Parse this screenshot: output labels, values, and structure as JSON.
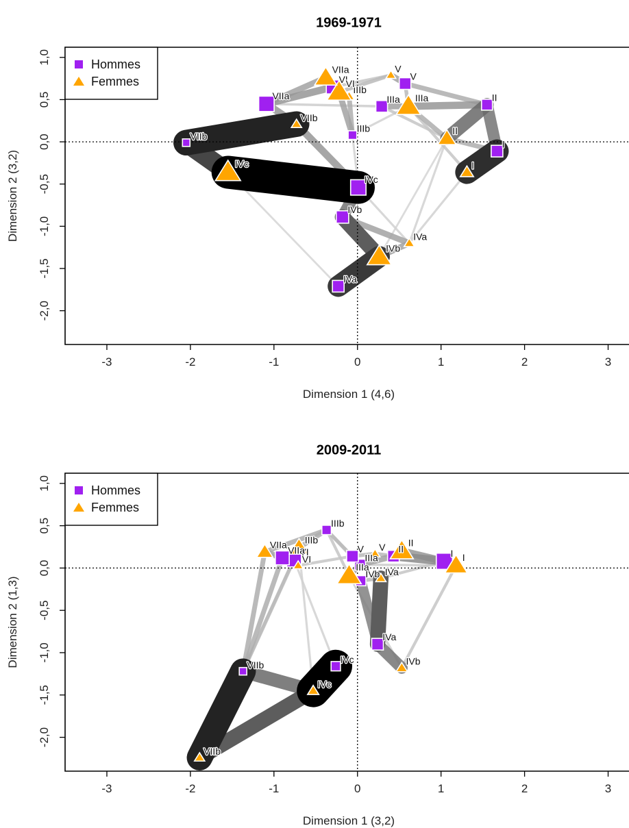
{
  "legend": {
    "entries": [
      {
        "label": "Hommes",
        "symbol": "square",
        "color": "#A020F0"
      },
      {
        "label": "Femmes",
        "symbol": "triangle",
        "color": "#FFA500"
      }
    ]
  },
  "colors": {
    "hommes": "#A020F0",
    "femmes": "#FFA500",
    "reference_line": "#000000"
  },
  "chart_data": [
    {
      "type": "scatter",
      "title": "1969-1971",
      "xlabel": "Dimension 1 (4,6)",
      "ylabel": "Dimension 2 (3,2)",
      "xlim": [
        -3.5,
        3.25
      ],
      "ylim": [
        -2.4,
        1.12
      ],
      "xticks": [
        -3,
        -2,
        -1,
        0,
        1,
        2,
        3
      ],
      "xtick_labels": [
        "-3",
        "-2",
        "-1",
        "0",
        "1",
        "2",
        "3"
      ],
      "yticks": [
        -2.0,
        -1.5,
        -1.0,
        -0.5,
        0.0,
        0.5,
        1.0
      ],
      "ytick_labels": [
        "-2,0",
        "-1,5",
        "-1,0",
        "-0,5",
        "0,0",
        "0,5",
        "1,0"
      ],
      "reference_lines": {
        "x": 0,
        "y": 0,
        "style": "dotted"
      },
      "legend_position": "top-left",
      "series": [
        {
          "name": "Hommes",
          "marker": "square",
          "color": "#A020F0",
          "points": [
            {
              "label": "I",
              "x": 1.67,
              "y": -0.11,
              "size": 1.0
            },
            {
              "label": "II",
              "x": 1.55,
              "y": 0.44,
              "size": 0.9
            },
            {
              "label": "IIIa",
              "x": 0.29,
              "y": 0.42,
              "size": 1.0
            },
            {
              "label": "IIIb",
              "x": -0.06,
              "y": 0.08,
              "size": 0.6
            },
            {
              "label": "IVa",
              "x": -0.23,
              "y": -1.71,
              "size": 1.0
            },
            {
              "label": "IVb",
              "x": -0.18,
              "y": -0.89,
              "size": 1.1
            },
            {
              "label": "IVc",
              "x": 0.01,
              "y": -0.54,
              "size": 1.5
            },
            {
              "label": "V",
              "x": 0.57,
              "y": 0.69,
              "size": 1.0
            },
            {
              "label": "VI",
              "x": -0.29,
              "y": 0.65,
              "size": 1.3
            },
            {
              "label": "VIIa",
              "x": -1.09,
              "y": 0.45,
              "size": 1.5
            },
            {
              "label": "VIIb",
              "x": -2.05,
              "y": -0.01,
              "size": 0.45
            }
          ]
        },
        {
          "name": "Femmes",
          "marker": "triangle",
          "color": "#FFA500",
          "points": [
            {
              "label": "I",
              "x": 1.31,
              "y": -0.36,
              "size": 0.8
            },
            {
              "label": "II",
              "x": 1.07,
              "y": 0.04,
              "size": 1.3
            },
            {
              "label": "IIIa",
              "x": 0.61,
              "y": 0.42,
              "size": 1.9
            },
            {
              "label": "IIIb",
              "x": -0.1,
              "y": 0.54,
              "size": 0.5
            },
            {
              "label": "IVa",
              "x": 0.62,
              "y": -1.2,
              "size": 0.5
            },
            {
              "label": "IVb",
              "x": 0.26,
              "y": -1.36,
              "size": 1.9
            },
            {
              "label": "IVc",
              "x": -1.55,
              "y": -0.36,
              "size": 2.0
            },
            {
              "label": "V",
              "x": 0.4,
              "y": 0.79,
              "size": 0.45
            },
            {
              "label": "VI",
              "x": -0.22,
              "y": 0.59,
              "size": 1.9
            },
            {
              "label": "VIIa",
              "x": -0.38,
              "y": 0.76,
              "size": 1.7
            },
            {
              "label": "VIIb",
              "x": -0.73,
              "y": 0.21,
              "size": 0.5
            }
          ]
        }
      ],
      "segments": [
        {
          "from": "F:IVc",
          "to": "H:IVc",
          "weight": 1.0
        },
        {
          "from": "H:VIIb",
          "to": "F:VIIb",
          "weight": 0.85
        },
        {
          "from": "H:I",
          "to": "F:I",
          "weight": 0.8
        },
        {
          "from": "H:IVa",
          "to": "F:IVb",
          "weight": 0.75
        },
        {
          "from": "H:VIIb",
          "to": "F:IVc",
          "weight": 0.7
        },
        {
          "from": "H:IVb",
          "to": "F:IVb",
          "weight": 0.6
        },
        {
          "from": "H:IVb",
          "to": "H:IVc",
          "weight": 0.5
        },
        {
          "from": "H:II",
          "to": "F:II",
          "weight": 0.55
        },
        {
          "from": "H:II",
          "to": "H:I",
          "weight": 0.5
        },
        {
          "from": "F:VIIb",
          "to": "H:IVc",
          "weight": 0.35
        },
        {
          "from": "H:IVb",
          "to": "F:IVa",
          "weight": 0.3
        },
        {
          "from": "F:IVb",
          "to": "F:IVa",
          "weight": 0.3
        },
        {
          "from": "H:VIIa",
          "to": "F:VIIb",
          "weight": 0.35
        },
        {
          "from": "H:VIIa",
          "to": "H:VI",
          "weight": 0.35
        },
        {
          "from": "H:VIIa",
          "to": "F:VIIa",
          "weight": 0.3
        },
        {
          "from": "F:VIIa",
          "to": "F:VI",
          "weight": 0.3
        },
        {
          "from": "F:VI",
          "to": "H:IIIb",
          "weight": 0.3
        },
        {
          "from": "F:IIIb",
          "to": "H:IIIb",
          "weight": 0.25
        },
        {
          "from": "H:IIIa",
          "to": "F:IIIa",
          "weight": 0.3
        },
        {
          "from": "F:IIIa",
          "to": "H:II",
          "weight": 0.35
        },
        {
          "from": "H:V",
          "to": "F:V",
          "weight": 0.3
        },
        {
          "from": "H:V",
          "to": "H:II",
          "weight": 0.25
        },
        {
          "from": "F:V",
          "to": "F:VI",
          "weight": 0.2
        },
        {
          "from": "F:IIIa",
          "to": "F:II",
          "weight": 0.25
        },
        {
          "from": "F:II",
          "to": "H:I",
          "weight": 0.25
        },
        {
          "from": "H:IIIa",
          "to": "F:II",
          "weight": 0.15
        },
        {
          "from": "H:V",
          "to": "F:IIIa",
          "weight": 0.2
        },
        {
          "from": "F:IIIa",
          "to": "F:I",
          "weight": 0.15
        },
        {
          "from": "H:VI",
          "to": "F:V",
          "weight": 0.15
        },
        {
          "from": "H:IVc",
          "to": "F:IVa",
          "weight": 0.1
        },
        {
          "from": "H:IIIb",
          "to": "F:IIIa",
          "weight": 0.1
        },
        {
          "from": "F:IVa",
          "to": "F:I",
          "weight": 0.1
        },
        {
          "from": "F:IVa",
          "to": "F:II",
          "weight": 0.1
        },
        {
          "from": "F:IVb",
          "to": "F:II",
          "weight": 0.08
        },
        {
          "from": "H:IVc",
          "to": "H:IIIb",
          "weight": 0.1
        },
        {
          "from": "H:IVa",
          "to": "F:IVc",
          "weight": 0.08
        },
        {
          "from": "H:VI",
          "to": "F:IIIb",
          "weight": 0.2
        },
        {
          "from": "H:VIIa",
          "to": "H:IIIa",
          "weight": 0.12
        }
      ]
    },
    {
      "type": "scatter",
      "title": "2009-2011",
      "xlabel": "Dimension 1 (3,2)",
      "ylabel": "Dimension 2 (1,3)",
      "xlim": [
        -3.5,
        3.25
      ],
      "ylim": [
        -2.4,
        1.12
      ],
      "xticks": [
        -3,
        -2,
        -1,
        0,
        1,
        2,
        3
      ],
      "xtick_labels": [
        "-3",
        "-2",
        "-1",
        "0",
        "1",
        "2",
        "3"
      ],
      "yticks": [
        -2.0,
        -1.5,
        -1.0,
        -0.5,
        0.0,
        0.5,
        1.0
      ],
      "ytick_labels": [
        "-2,0",
        "-1,5",
        "-1,0",
        "-0,5",
        "0,0",
        "0,5",
        "1,0"
      ],
      "reference_lines": {
        "x": 0,
        "y": 0,
        "style": "dotted"
      },
      "legend_position": "top-left",
      "series": [
        {
          "name": "Hommes",
          "marker": "square",
          "color": "#A020F0",
          "points": [
            {
              "label": "I",
              "x": 1.04,
              "y": 0.08,
              "size": 1.6
            },
            {
              "label": "II",
              "x": 0.43,
              "y": 0.14,
              "size": 1.0
            },
            {
              "label": "IIIa",
              "x": 0.03,
              "y": 0.04,
              "size": 0.9
            },
            {
              "label": "IIIb",
              "x": -0.37,
              "y": 0.45,
              "size": 0.7
            },
            {
              "label": "IVa",
              "x": 0.24,
              "y": -0.9,
              "size": 1.0
            },
            {
              "label": "IVb",
              "x": 0.04,
              "y": -0.15,
              "size": 0.8
            },
            {
              "label": "IVc",
              "x": -0.26,
              "y": -1.16,
              "size": 0.7
            },
            {
              "label": "V",
              "x": -0.06,
              "y": 0.14,
              "size": 1.0
            },
            {
              "label": "VI",
              "x": -0.76,
              "y": 0.1,
              "size": 1.4
            },
            {
              "label": "VIIa",
              "x": -0.9,
              "y": 0.12,
              "size": 1.3
            },
            {
              "label": "VIIb",
              "x": -1.37,
              "y": -1.22,
              "size": 0.45
            }
          ]
        },
        {
          "name": "Femmes",
          "marker": "triangle",
          "color": "#FFA500",
          "points": [
            {
              "label": "I",
              "x": 1.18,
              "y": 0.03,
              "size": 1.7
            },
            {
              "label": "II",
              "x": 0.53,
              "y": 0.2,
              "size": 1.8
            },
            {
              "label": "IIIa",
              "x": -0.1,
              "y": -0.09,
              "size": 1.9
            },
            {
              "label": "IIIb",
              "x": -0.7,
              "y": 0.24,
              "size": 1.4
            },
            {
              "label": "IVa",
              "x": 0.28,
              "y": -0.12,
              "size": 0.5
            },
            {
              "label": "IVb",
              "x": 0.53,
              "y": -1.18,
              "size": 0.6
            },
            {
              "label": "IVc",
              "x": -0.53,
              "y": -1.45,
              "size": 0.6
            },
            {
              "label": "V",
              "x": 0.21,
              "y": 0.17,
              "size": 0.45
            },
            {
              "label": "VI",
              "x": -0.71,
              "y": 0.03,
              "size": 0.45
            },
            {
              "label": "VIIa",
              "x": -1.11,
              "y": 0.19,
              "size": 1.1
            },
            {
              "label": "VIIb",
              "x": -1.89,
              "y": -2.24,
              "size": 0.5
            }
          ]
        }
      ],
      "segments": [
        {
          "from": "F:IVc",
          "to": "H:IVc",
          "weight": 1.0
        },
        {
          "from": "F:VIIb",
          "to": "H:VIIb",
          "weight": 0.85
        },
        {
          "from": "F:VIIb",
          "to": "F:IVc",
          "weight": 0.6
        },
        {
          "from": "H:VIIb",
          "to": "F:IVc",
          "weight": 0.55
        },
        {
          "from": "F:IVa",
          "to": "H:IVa",
          "weight": 0.6
        },
        {
          "from": "H:IVa",
          "to": "F:IVb",
          "weight": 0.5
        },
        {
          "from": "H:IVb",
          "to": "H:IVa",
          "weight": 0.45
        },
        {
          "from": "H:I",
          "to": "F:I",
          "weight": 0.45
        },
        {
          "from": "H:II",
          "to": "H:I",
          "weight": 0.4
        },
        {
          "from": "F:II",
          "to": "H:I",
          "weight": 0.35
        },
        {
          "from": "H:VIIb",
          "to": "F:VIIa",
          "weight": 0.25
        },
        {
          "from": "H:VIIb",
          "to": "H:VIIa",
          "weight": 0.25
        },
        {
          "from": "H:VIIb",
          "to": "H:VI",
          "weight": 0.2
        },
        {
          "from": "H:VIIb",
          "to": "F:IIIb",
          "weight": 0.15
        },
        {
          "from": "F:VIIa",
          "to": "H:VIIa",
          "weight": 0.3
        },
        {
          "from": "H:VIIa",
          "to": "H:VI",
          "weight": 0.3
        },
        {
          "from": "H:VI",
          "to": "F:IIIb",
          "weight": 0.3
        },
        {
          "from": "F:VIIa",
          "to": "H:IIIb",
          "weight": 0.25
        },
        {
          "from": "F:IIIb",
          "to": "H:IIIb",
          "weight": 0.25
        },
        {
          "from": "H:IIIb",
          "to": "F:IIIa",
          "weight": 0.15
        },
        {
          "from": "H:IIIb",
          "to": "H:V",
          "weight": 0.15
        },
        {
          "from": "F:IIIa",
          "to": "H:IIIa",
          "weight": 0.3
        },
        {
          "from": "H:IIIa",
          "to": "H:II",
          "weight": 0.3
        },
        {
          "from": "H:V",
          "to": "F:V",
          "weight": 0.2
        },
        {
          "from": "F:V",
          "to": "H:II",
          "weight": 0.2
        },
        {
          "from": "H:IVb",
          "to": "F:IVa",
          "weight": 0.2
        },
        {
          "from": "F:IVa",
          "to": "H:I",
          "weight": 0.15
        },
        {
          "from": "F:IVb",
          "to": "F:I",
          "weight": 0.15
        },
        {
          "from": "F:IIIa",
          "to": "F:IVb",
          "weight": 0.12
        },
        {
          "from": "H:IIIa",
          "to": "F:I",
          "weight": 0.12
        },
        {
          "from": "F:IIIb",
          "to": "F:IVc",
          "weight": 0.1
        },
        {
          "from": "H:VI",
          "to": "H:IVc",
          "weight": 0.1
        },
        {
          "from": "F:VIIa",
          "to": "F:VI",
          "weight": 0.15
        },
        {
          "from": "F:VI",
          "to": "H:V",
          "weight": 0.15
        },
        {
          "from": "H:IIIb",
          "to": "H:IIIa",
          "weight": 0.2
        },
        {
          "from": "F:IIIa",
          "to": "H:IVb",
          "weight": 0.2
        }
      ]
    }
  ]
}
